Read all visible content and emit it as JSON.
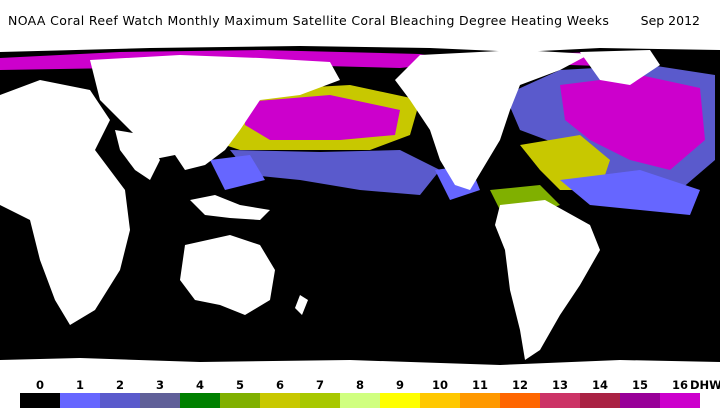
{
  "title": "NOAA Coral Reef Watch Monthly Maximum Satellite Coral Bleaching Degree Heating Weeks",
  "date": "Sep 2012",
  "legend": {
    "ticks": [
      "0",
      "1",
      "2",
      "3",
      "4",
      "5",
      "6",
      "7",
      "8",
      "9",
      "10",
      "11",
      "12",
      "13",
      "14",
      "15",
      "16"
    ],
    "unit": "DHW",
    "colors": [
      "#000000",
      "#6666ff",
      "#5a5acc",
      "#606099",
      "#008000",
      "#80b000",
      "#c8c800",
      "#a8c800",
      "#d0ff80",
      "#ffff00",
      "#ffc800",
      "#ff9900",
      "#ff6600",
      "#cc3366",
      "#aa2244",
      "#990099",
      "#cc00cc"
    ]
  },
  "map": {
    "land_color": "#ffffff",
    "ocean_zero_color": "#000000"
  }
}
